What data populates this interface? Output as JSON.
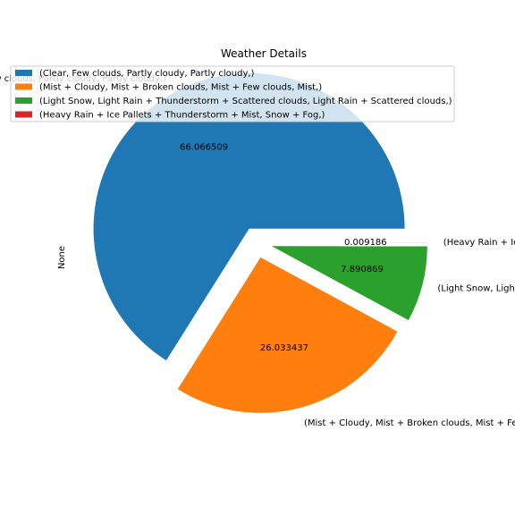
{
  "chart_data": {
    "type": "pie",
    "title": "Weather Details",
    "ylabel": "None",
    "slices": [
      {
        "label": "(Clear, Few clouds, Partly cloudy, Partly cloudy,)",
        "value": 66.066509,
        "value_label": "66.066509",
        "color": "#1f77b4"
      },
      {
        "label": "(Mist + Cloudy, Mist + Broken clouds, Mist + Few clouds, Mist,)",
        "value": 26.033437,
        "value_label": "26.033437",
        "color": "#ff7f0e"
      },
      {
        "label": "(Light Snow, Light Rain + Thunderstorm + Scattered clouds, Light Rain + Scattered clouds,)",
        "value": 7.890869,
        "value_label": "7.890869",
        "color": "#2ca02c"
      },
      {
        "label": "(Heavy Rain + Ice Pallets + Thunderstorm + Mist, Snow + Fog,)",
        "value": 0.009186,
        "value_label": "0.009186",
        "color": "#d62728"
      }
    ],
    "legend": {
      "position": "upper-left"
    }
  }
}
